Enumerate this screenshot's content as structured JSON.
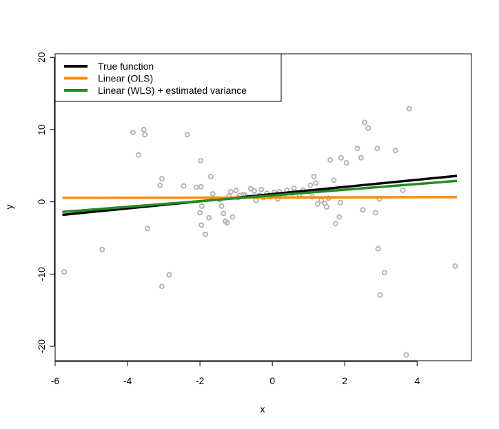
{
  "chart_data": {
    "type": "scatter",
    "title": "",
    "xlabel": "x",
    "ylabel": "y",
    "xlim": [
      -6.0,
      5.5
    ],
    "ylim": [
      -22.0,
      20.5
    ],
    "xticks": [
      -6,
      -4,
      -2,
      0,
      2,
      4
    ],
    "xtick_labels": [
      "-6",
      "-4",
      "-2",
      "0",
      "2",
      "4"
    ],
    "yticks": [
      -20,
      -10,
      0,
      10,
      20
    ],
    "ytick_labels": [
      "-20",
      "-10",
      "0",
      "10",
      "20"
    ],
    "grid": false,
    "legend_position": "top-left",
    "point_color": "#b4b4b4",
    "points": [
      [
        -5.75,
        -9.7
      ],
      [
        -4.7,
        -6.6
      ],
      [
        -3.85,
        9.6
      ],
      [
        -3.7,
        6.5
      ],
      [
        -3.55,
        10.0
      ],
      [
        -3.52,
        9.3
      ],
      [
        -3.45,
        -3.7
      ],
      [
        -3.1,
        2.3
      ],
      [
        -3.05,
        3.2
      ],
      [
        -3.05,
        -11.7
      ],
      [
        -2.85,
        -10.1
      ],
      [
        -2.45,
        2.2
      ],
      [
        -2.35,
        9.3
      ],
      [
        -2.1,
        2.0
      ],
      [
        -2.0,
        -1.5
      ],
      [
        -1.98,
        5.7
      ],
      [
        -1.97,
        2.1
      ],
      [
        -1.96,
        -3.2
      ],
      [
        -1.95,
        -0.6
      ],
      [
        -1.85,
        -4.5
      ],
      [
        -1.75,
        -2.2
      ],
      [
        -1.7,
        3.5
      ],
      [
        -1.65,
        1.1
      ],
      [
        -1.45,
        0.3
      ],
      [
        -1.4,
        -0.6
      ],
      [
        -1.35,
        -1.6
      ],
      [
        -1.3,
        -2.7
      ],
      [
        -1.25,
        -2.9
      ],
      [
        -1.2,
        0.8
      ],
      [
        -1.15,
        1.4
      ],
      [
        -1.1,
        -2.1
      ],
      [
        -1.0,
        1.6
      ],
      [
        -0.95,
        0.6
      ],
      [
        -0.9,
        0.9
      ],
      [
        -0.8,
        1.0
      ],
      [
        -0.75,
        0.9
      ],
      [
        -0.6,
        1.8
      ],
      [
        -0.5,
        1.5
      ],
      [
        -0.45,
        0.2
      ],
      [
        -0.35,
        0.9
      ],
      [
        -0.3,
        1.7
      ],
      [
        -0.25,
        0.6
      ],
      [
        -0.15,
        1.2
      ],
      [
        -0.05,
        0.7
      ],
      [
        0.05,
        1.3
      ],
      [
        0.1,
        0.9
      ],
      [
        0.15,
        0.4
      ],
      [
        0.2,
        1.4
      ],
      [
        0.3,
        0.8
      ],
      [
        0.4,
        1.6
      ],
      [
        0.55,
        1.2
      ],
      [
        0.6,
        1.9
      ],
      [
        0.75,
        1.0
      ],
      [
        0.85,
        1.6
      ],
      [
        1.0,
        1.4
      ],
      [
        1.05,
        2.3
      ],
      [
        1.1,
        0.7
      ],
      [
        1.15,
        3.5
      ],
      [
        1.2,
        2.6
      ],
      [
        1.25,
        -0.3
      ],
      [
        1.35,
        0.2
      ],
      [
        1.45,
        -0.2
      ],
      [
        1.5,
        -0.7
      ],
      [
        1.55,
        0.5
      ],
      [
        1.6,
        5.8
      ],
      [
        1.7,
        3.0
      ],
      [
        1.75,
        -3.0
      ],
      [
        1.85,
        -2.1
      ],
      [
        1.88,
        -0.1
      ],
      [
        1.9,
        6.1
      ],
      [
        2.05,
        5.4
      ],
      [
        2.35,
        7.4
      ],
      [
        2.45,
        6.1
      ],
      [
        2.5,
        -1.1
      ],
      [
        2.55,
        11.0
      ],
      [
        2.65,
        10.2
      ],
      [
        2.85,
        -1.5
      ],
      [
        2.9,
        7.4
      ],
      [
        2.92,
        -6.5
      ],
      [
        2.96,
        0.4
      ],
      [
        2.98,
        -12.9
      ],
      [
        3.1,
        -9.8
      ],
      [
        3.4,
        7.1
      ],
      [
        3.6,
        1.6
      ],
      [
        3.7,
        -21.2
      ],
      [
        3.78,
        12.9
      ],
      [
        5.05,
        -8.9
      ]
    ],
    "series": [
      {
        "name": "True function",
        "color": "#000000",
        "x": [
          -5.8,
          5.1
        ],
        "y": [
          -1.8,
          3.6
        ]
      },
      {
        "name": "Linear (OLS)",
        "color": "#ff8c00",
        "x": [
          -5.8,
          5.1
        ],
        "y": [
          0.55,
          0.65
        ]
      },
      {
        "name": "Linear (WLS) + estimated variance",
        "color": "#228b22",
        "x": [
          -5.8,
          5.1
        ],
        "y": [
          -1.4,
          2.9
        ]
      }
    ]
  }
}
